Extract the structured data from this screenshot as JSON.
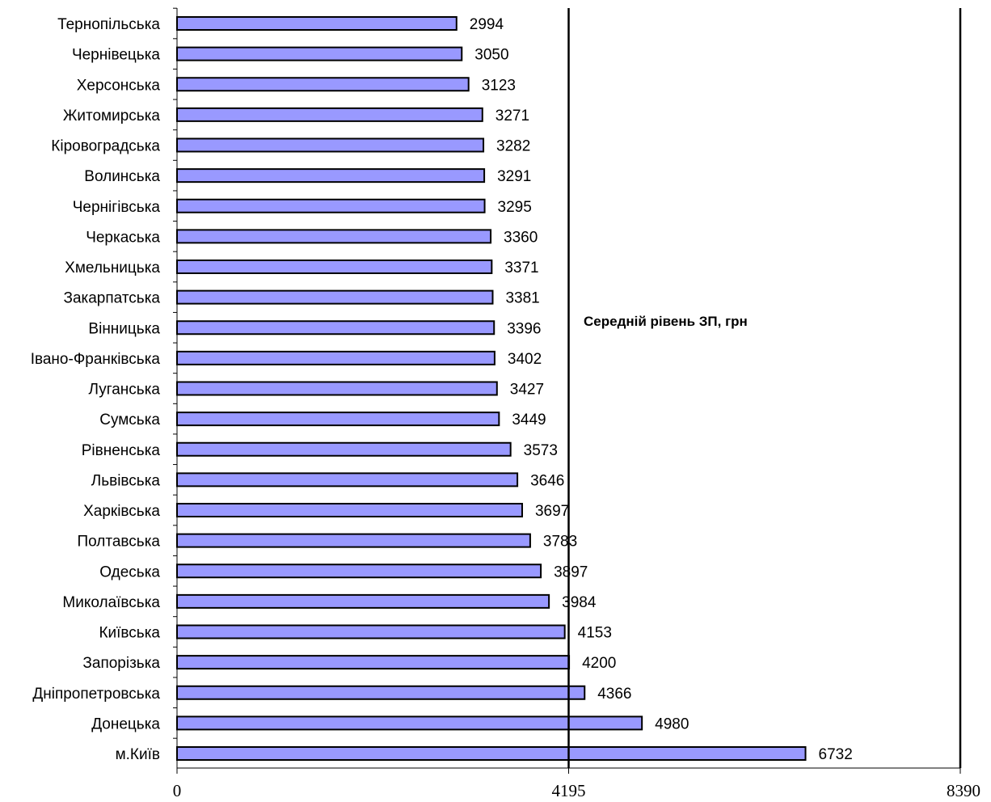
{
  "chart_data": {
    "type": "bar",
    "orientation": "horizontal",
    "categories": [
      "Тернопільська",
      "Чернівецька",
      "Херсонська",
      "Житомирська",
      "Кіровоградська",
      "Волинська",
      "Чернігівська",
      "Черкаська",
      "Хмельницька",
      "Закарпатська",
      "Вінницька",
      "Івано-Франківська",
      "Луганська",
      "Сумська",
      "Рівненська",
      "Львівська",
      "Харківська",
      "Полтавська",
      "Одеська",
      "Миколаївська",
      "Київська",
      "Запорізька",
      "Дніпропетровська",
      "Донецька",
      "м.Київ"
    ],
    "values": [
      2994,
      3050,
      3123,
      3271,
      3282,
      3291,
      3295,
      3360,
      3371,
      3381,
      3396,
      3402,
      3427,
      3449,
      3573,
      3646,
      3697,
      3783,
      3897,
      3984,
      4153,
      4200,
      4366,
      4980,
      6732
    ],
    "value_labels": [
      "2994",
      "3050",
      "3123",
      "3271",
      "3282",
      "3291",
      "3295",
      "3360",
      "3371",
      "3381",
      "3396",
      "3402",
      "3427",
      "3449",
      "3573",
      "3646",
      "3697",
      "3783",
      "3897",
      "3984",
      "4153",
      "4200",
      "4366",
      "4980",
      "6732"
    ],
    "xlim": [
      0,
      8390
    ],
    "x_ticks": [
      "0",
      "4195",
      "8390"
    ],
    "reference_lines": [
      4195,
      8390
    ],
    "annotation": "Середній рівень ЗП, грн",
    "bar_color": "#9999ff",
    "bar_border_color": "#000000",
    "grid": false,
    "legend": "none"
  }
}
